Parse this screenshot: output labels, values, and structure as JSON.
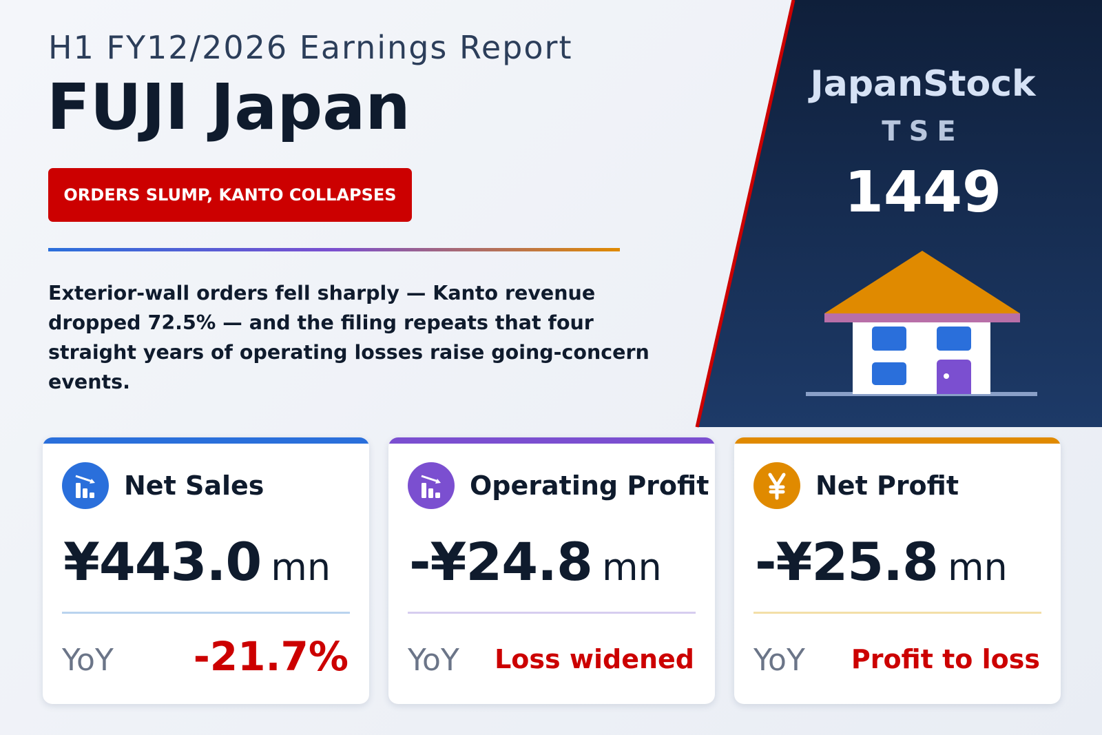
{
  "header": {
    "subtitle": "H1 FY12/2026 Earnings Report",
    "title": "FUJI Japan",
    "badge": "ORDERS SLUMP, KANTO COLLAPSES",
    "summary": "Exterior-wall orders fell sharply — Kanto revenue dropped 72.5% — and the filing repeats that four straight years of operating losses raise going-concern events."
  },
  "brand": {
    "name": "JapanStock",
    "exchange": "TSE",
    "code": "1449"
  },
  "cards": [
    {
      "label": "Net Sales",
      "value": "¥443.0",
      "unit": "mn",
      "yoy_label": "YoY",
      "yoy": "-21.7%",
      "color": "#2a6fdb",
      "divider": "#b9d3ee",
      "icon": "chart"
    },
    {
      "label": "Operating Profit",
      "value": "-¥24.8",
      "unit": "mn",
      "yoy_label": "YoY",
      "yoy": "Loss widened",
      "color": "#7b4fd0",
      "divider": "#d6cdef",
      "icon": "chart"
    },
    {
      "label": "Net Profit",
      "value": "-¥25.8",
      "unit": "mn",
      "yoy_label": "YoY",
      "yoy": "Profit to loss",
      "color": "#e08a00",
      "divider": "#f3dfa8",
      "icon": "yen"
    }
  ]
}
